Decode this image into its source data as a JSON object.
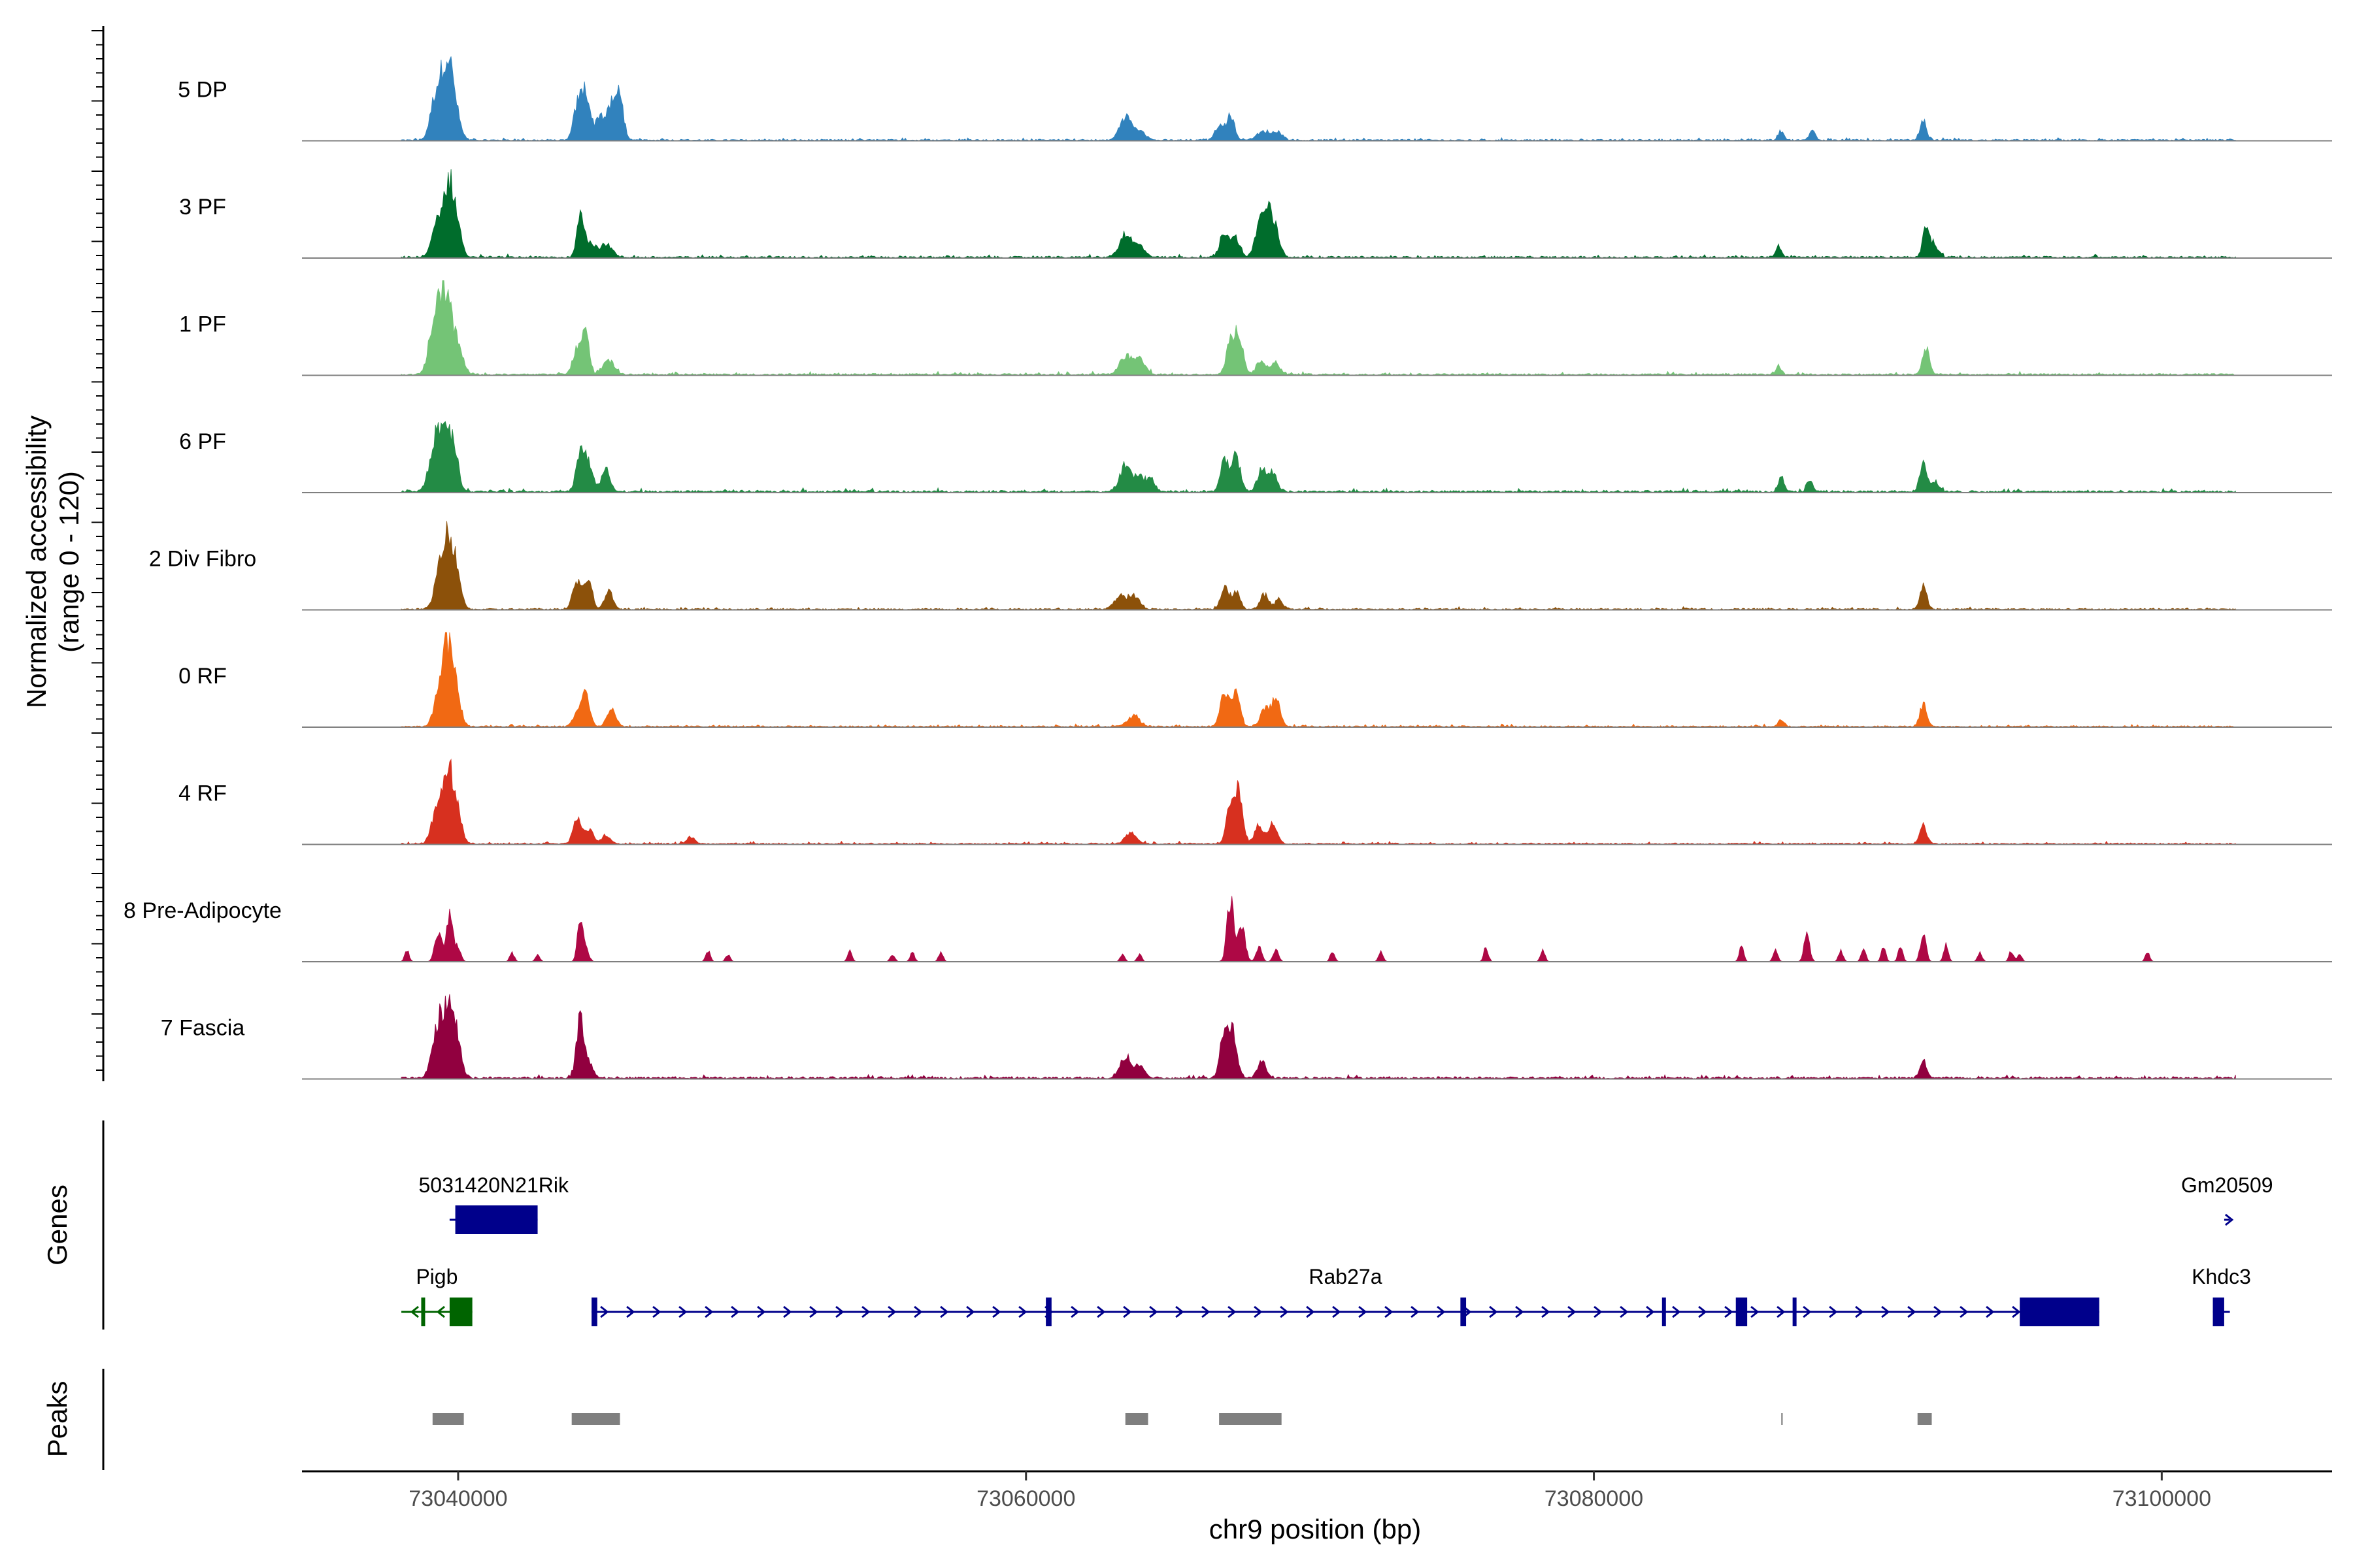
{
  "chart_data": {
    "type": "area",
    "title": "",
    "chromosome": "chr9",
    "xlabel": "chr9 position (bp)",
    "xlim": [
      73034500,
      73106000
    ],
    "x_ticks": [
      73040000,
      73060000,
      73080000,
      73100000
    ],
    "x_tick_labels": [
      "73040000",
      "73060000",
      "73080000",
      "73100000"
    ],
    "ylabel_line1": "Normalized accessibility",
    "ylabel_line2": "(range 0 - 120)",
    "ylim": [
      0,
      120
    ],
    "coverage_start": 73038000,
    "coverage_end": 73102600,
    "series": [
      {
        "name": "5 DP",
        "color": "#3182bd",
        "noise": 4,
        "peaks": [
          [
            73039200,
            55,
            180
          ],
          [
            73039600,
            105,
            200
          ],
          [
            73039900,
            30,
            180
          ],
          [
            73044200,
            45,
            140
          ],
          [
            73044500,
            65,
            150
          ],
          [
            73045000,
            35,
            150
          ],
          [
            73045400,
            48,
            140
          ],
          [
            73045700,
            65,
            120
          ],
          [
            73063500,
            32,
            200
          ],
          [
            73064000,
            12,
            200
          ],
          [
            73066800,
            20,
            140
          ],
          [
            73067200,
            35,
            140
          ],
          [
            73068400,
            12,
            250
          ],
          [
            73068900,
            10,
            150
          ],
          [
            73086600,
            12,
            100
          ],
          [
            73087700,
            14,
            100
          ],
          [
            73091600,
            25,
            120
          ]
        ]
      },
      {
        "name": "3 PF",
        "color": "#006d2c",
        "noise": 5,
        "peaks": [
          [
            73039300,
            50,
            200
          ],
          [
            73039700,
            95,
            180
          ],
          [
            73040000,
            30,
            150
          ],
          [
            73044300,
            60,
            120
          ],
          [
            73044600,
            20,
            200
          ],
          [
            73045200,
            18,
            200
          ],
          [
            73063500,
            32,
            200
          ],
          [
            73064000,
            15,
            200
          ],
          [
            73067000,
            35,
            160
          ],
          [
            73067400,
            25,
            150
          ],
          [
            73068200,
            40,
            150
          ],
          [
            73068500,
            60,
            150
          ],
          [
            73068800,
            35,
            150
          ],
          [
            73086500,
            15,
            100
          ],
          [
            73091700,
            38,
            120
          ],
          [
            73092000,
            15,
            150
          ]
        ]
      },
      {
        "name": "1 PF",
        "color": "#74c476",
        "noise": 5,
        "peaks": [
          [
            73039200,
            85,
            200
          ],
          [
            73039600,
            110,
            180
          ],
          [
            73040000,
            35,
            180
          ],
          [
            73044200,
            35,
            150
          ],
          [
            73044500,
            60,
            120
          ],
          [
            73045300,
            20,
            200
          ],
          [
            73063500,
            25,
            200
          ],
          [
            73064000,
            20,
            200
          ],
          [
            73067200,
            45,
            140
          ],
          [
            73067500,
            55,
            140
          ],
          [
            73068300,
            15,
            200
          ],
          [
            73068800,
            15,
            150
          ],
          [
            73086500,
            10,
            100
          ],
          [
            73091700,
            38,
            120
          ]
        ]
      },
      {
        "name": "6 PF",
        "color": "#238b45",
        "noise": 6,
        "peaks": [
          [
            73039200,
            70,
            200
          ],
          [
            73039600,
            80,
            200
          ],
          [
            73039900,
            35,
            150
          ],
          [
            73044300,
            55,
            140
          ],
          [
            73044600,
            35,
            150
          ],
          [
            73045200,
            30,
            150
          ],
          [
            73063500,
            32,
            200
          ],
          [
            73064000,
            20,
            200
          ],
          [
            73064400,
            15,
            150
          ],
          [
            73067000,
            45,
            140
          ],
          [
            73067400,
            48,
            140
          ],
          [
            73068300,
            30,
            150
          ],
          [
            73068700,
            25,
            150
          ],
          [
            73086600,
            20,
            100
          ],
          [
            73087600,
            16,
            100
          ],
          [
            73091600,
            40,
            120
          ],
          [
            73092000,
            12,
            150
          ]
        ]
      },
      {
        "name": "2 Div Fibro",
        "color": "#8c510a",
        "noise": 4,
        "peaks": [
          [
            73039400,
            55,
            200
          ],
          [
            73039700,
            85,
            200
          ],
          [
            73040000,
            25,
            150
          ],
          [
            73044200,
            40,
            150
          ],
          [
            73044600,
            45,
            120
          ],
          [
            73045300,
            25,
            150
          ],
          [
            73063300,
            18,
            200
          ],
          [
            73063800,
            18,
            200
          ],
          [
            73067000,
            30,
            140
          ],
          [
            73067400,
            25,
            140
          ],
          [
            73068400,
            20,
            150
          ],
          [
            73068900,
            12,
            150
          ],
          [
            73091600,
            32,
            120
          ]
        ]
      },
      {
        "name": "0 RF",
        "color": "#f16913",
        "noise": 4,
        "peaks": [
          [
            73039400,
            60,
            200
          ],
          [
            73039700,
            88,
            180
          ],
          [
            73040000,
            25,
            150
          ],
          [
            73044200,
            20,
            150
          ],
          [
            73044500,
            50,
            130
          ],
          [
            73045400,
            25,
            150
          ],
          [
            73063800,
            15,
            200
          ],
          [
            73067000,
            45,
            150
          ],
          [
            73067400,
            50,
            140
          ],
          [
            73068400,
            25,
            150
          ],
          [
            73068800,
            38,
            150
          ],
          [
            73086600,
            10,
            100
          ],
          [
            73091600,
            30,
            120
          ]
        ]
      },
      {
        "name": "4 RF",
        "color": "#d7301f",
        "noise": 4,
        "peaks": [
          [
            73039300,
            55,
            200
          ],
          [
            73039700,
            90,
            180
          ],
          [
            73040000,
            30,
            150
          ],
          [
            73044200,
            38,
            140
          ],
          [
            73044600,
            20,
            150
          ],
          [
            73045200,
            12,
            150
          ],
          [
            73048200,
            10,
            130
          ],
          [
            73063700,
            15,
            200
          ],
          [
            73067200,
            50,
            140
          ],
          [
            73067500,
            65,
            140
          ],
          [
            73068200,
            25,
            150
          ],
          [
            73068700,
            30,
            150
          ],
          [
            73091600,
            28,
            120
          ]
        ]
      },
      {
        "name": "8 Pre-Adipocyte",
        "color": "#ae0845",
        "noise": 0,
        "peaks": [
          [
            73038200,
            15,
            80
          ],
          [
            73039300,
            40,
            120
          ],
          [
            73039700,
            68,
            110
          ],
          [
            73040000,
            20,
            100
          ],
          [
            73041900,
            12,
            80
          ],
          [
            73042800,
            10,
            80
          ],
          [
            73044300,
            55,
            100
          ],
          [
            73044500,
            20,
            100
          ],
          [
            73048800,
            15,
            80
          ],
          [
            73049500,
            10,
            80
          ],
          [
            73053800,
            15,
            80
          ],
          [
            73055300,
            10,
            80
          ],
          [
            73056000,
            12,
            80
          ],
          [
            73057000,
            12,
            80
          ],
          [
            73063400,
            10,
            80
          ],
          [
            73064000,
            10,
            80
          ],
          [
            73067200,
            85,
            120
          ],
          [
            73067600,
            50,
            120
          ],
          [
            73068200,
            20,
            100
          ],
          [
            73068800,
            15,
            100
          ],
          [
            73070800,
            15,
            80
          ],
          [
            73072500,
            15,
            80
          ],
          [
            73076200,
            20,
            80
          ],
          [
            73078200,
            15,
            80
          ],
          [
            73085200,
            20,
            80
          ],
          [
            73086400,
            18,
            80
          ],
          [
            73087500,
            35,
            100
          ],
          [
            73088700,
            15,
            80
          ],
          [
            73089500,
            20,
            80
          ],
          [
            73090200,
            20,
            80
          ],
          [
            73090800,
            22,
            80
          ],
          [
            73091600,
            38,
            100
          ],
          [
            73092400,
            25,
            80
          ],
          [
            73093600,
            12,
            80
          ],
          [
            73094700,
            15,
            80
          ],
          [
            73095000,
            10,
            80
          ],
          [
            73099500,
            12,
            80
          ]
        ]
      },
      {
        "name": "7 Fascia",
        "color": "#91003f",
        "noise": 6,
        "peaks": [
          [
            73039300,
            70,
            200
          ],
          [
            73039700,
            85,
            200
          ],
          [
            73040000,
            30,
            150
          ],
          [
            73044300,
            80,
            130
          ],
          [
            73044600,
            22,
            150
          ],
          [
            73063500,
            25,
            200
          ],
          [
            73064000,
            15,
            200
          ],
          [
            73067000,
            70,
            150
          ],
          [
            73067300,
            55,
            150
          ],
          [
            73068300,
            22,
            150
          ],
          [
            73091600,
            25,
            120
          ]
        ]
      }
    ],
    "genes": {
      "title": "Genes",
      "row1": [
        {
          "name": "5031420N21Rik",
          "strand": "+",
          "start": 73039700,
          "end": 73042800,
          "color": "#00008b",
          "exons": [
            [
              73039900,
              73042800
            ]
          ]
        },
        {
          "name": "Gm20509",
          "strand": "+",
          "start": 73102200,
          "end": 73102400,
          "color": "#00008b",
          "exons": []
        }
      ],
      "row2": [
        {
          "name": "Pigb",
          "strand": "-",
          "start": 73038000,
          "end": 73040500,
          "color": "#006400",
          "exons": [
            [
              73039700,
              73040500
            ],
            [
              73038700,
              73038800
            ]
          ]
        },
        {
          "name": "Rab27a",
          "strand": "+",
          "start": 73044700,
          "end": 73097800,
          "color": "#00008b",
          "exons": [
            [
              73044700,
              73044900
            ],
            [
              73060700,
              73060900
            ],
            [
              73075300,
              73075500
            ],
            [
              73082400,
              73082500
            ],
            [
              73085000,
              73085400
            ],
            [
              73087000,
              73087100
            ],
            [
              73095000,
              73097800
            ]
          ]
        },
        {
          "name": "Khdc3",
          "strand": "+",
          "start": 73101800,
          "end": 73102400,
          "color": "#00008b",
          "exons": [
            [
              73101800,
              73102200
            ]
          ]
        }
      ]
    },
    "peaks_track": {
      "title": "Peaks",
      "color": "#7f7f7f",
      "regions": [
        [
          73039100,
          73040200
        ],
        [
          73044000,
          73045700
        ],
        [
          73063500,
          73064300
        ],
        [
          73066800,
          73069000
        ],
        [
          73086600,
          73086650
        ],
        [
          73091400,
          73091900
        ]
      ]
    }
  }
}
